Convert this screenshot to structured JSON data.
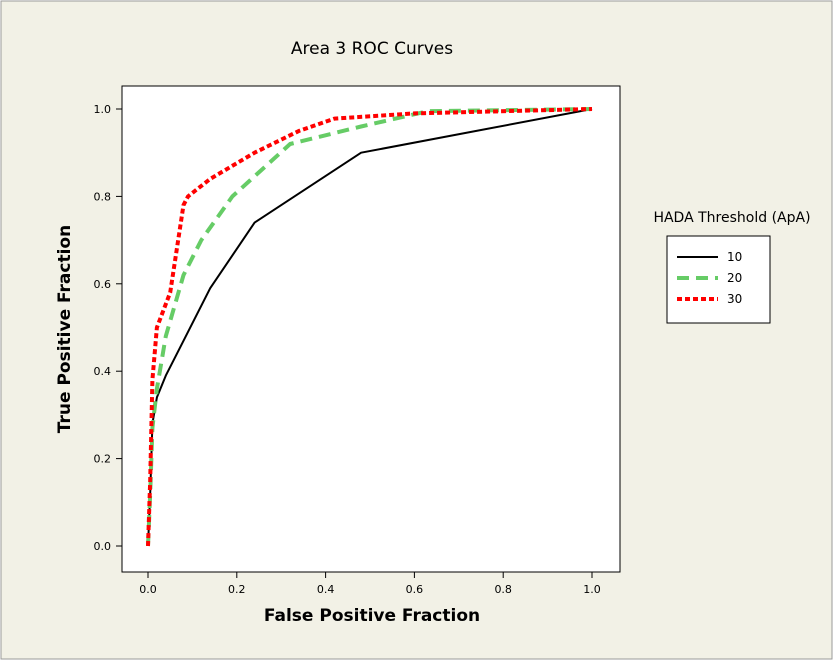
{
  "chart_data": {
    "type": "line",
    "title": "Area 3 ROC Curves",
    "xlabel": "False Positive Fraction",
    "ylabel": "True Positive Fraction",
    "xlim": [
      0,
      1
    ],
    "ylim": [
      0,
      1
    ],
    "x_ticks": [
      "0.0",
      "0.2",
      "0.4",
      "0.6",
      "0.8",
      "1.0"
    ],
    "y_ticks": [
      "0.0",
      "0.2",
      "0.4",
      "0.6",
      "0.8",
      "1.0"
    ],
    "grid": false,
    "legend_title": "HADA Threshold (ApA)",
    "legend_position": "right",
    "series": [
      {
        "name": "10",
        "color": "#000000",
        "dash": "solid",
        "points": [
          [
            0,
            0
          ],
          [
            0.005,
            0.12
          ],
          [
            0.01,
            0.28
          ],
          [
            0.02,
            0.34
          ],
          [
            0.04,
            0.39
          ],
          [
            0.07,
            0.45
          ],
          [
            0.14,
            0.59
          ],
          [
            0.24,
            0.74
          ],
          [
            0.48,
            0.9
          ],
          [
            1.0,
            1.0
          ]
        ]
      },
      {
        "name": "20",
        "color": "#66cc66",
        "dash": "dashed",
        "points": [
          [
            0,
            0
          ],
          [
            0.005,
            0.12
          ],
          [
            0.01,
            0.27
          ],
          [
            0.02,
            0.36
          ],
          [
            0.04,
            0.48
          ],
          [
            0.08,
            0.62
          ],
          [
            0.12,
            0.7
          ],
          [
            0.19,
            0.8
          ],
          [
            0.32,
            0.92
          ],
          [
            0.48,
            0.96
          ],
          [
            0.63,
            0.995
          ],
          [
            1.0,
            1.0
          ]
        ]
      },
      {
        "name": "30",
        "color": "#ff0000",
        "dash": "dotted",
        "points": [
          [
            0,
            0
          ],
          [
            0.005,
            0.15
          ],
          [
            0.01,
            0.38
          ],
          [
            0.02,
            0.5
          ],
          [
            0.05,
            0.58
          ],
          [
            0.08,
            0.78
          ],
          [
            0.09,
            0.8
          ],
          [
            0.14,
            0.84
          ],
          [
            0.24,
            0.9
          ],
          [
            0.34,
            0.95
          ],
          [
            0.42,
            0.978
          ],
          [
            0.6,
            0.99
          ],
          [
            1.0,
            1.0
          ]
        ]
      }
    ]
  },
  "colors": {
    "background": "#f2f1e6",
    "plot_area": "#ffffff",
    "border": "#000000"
  }
}
